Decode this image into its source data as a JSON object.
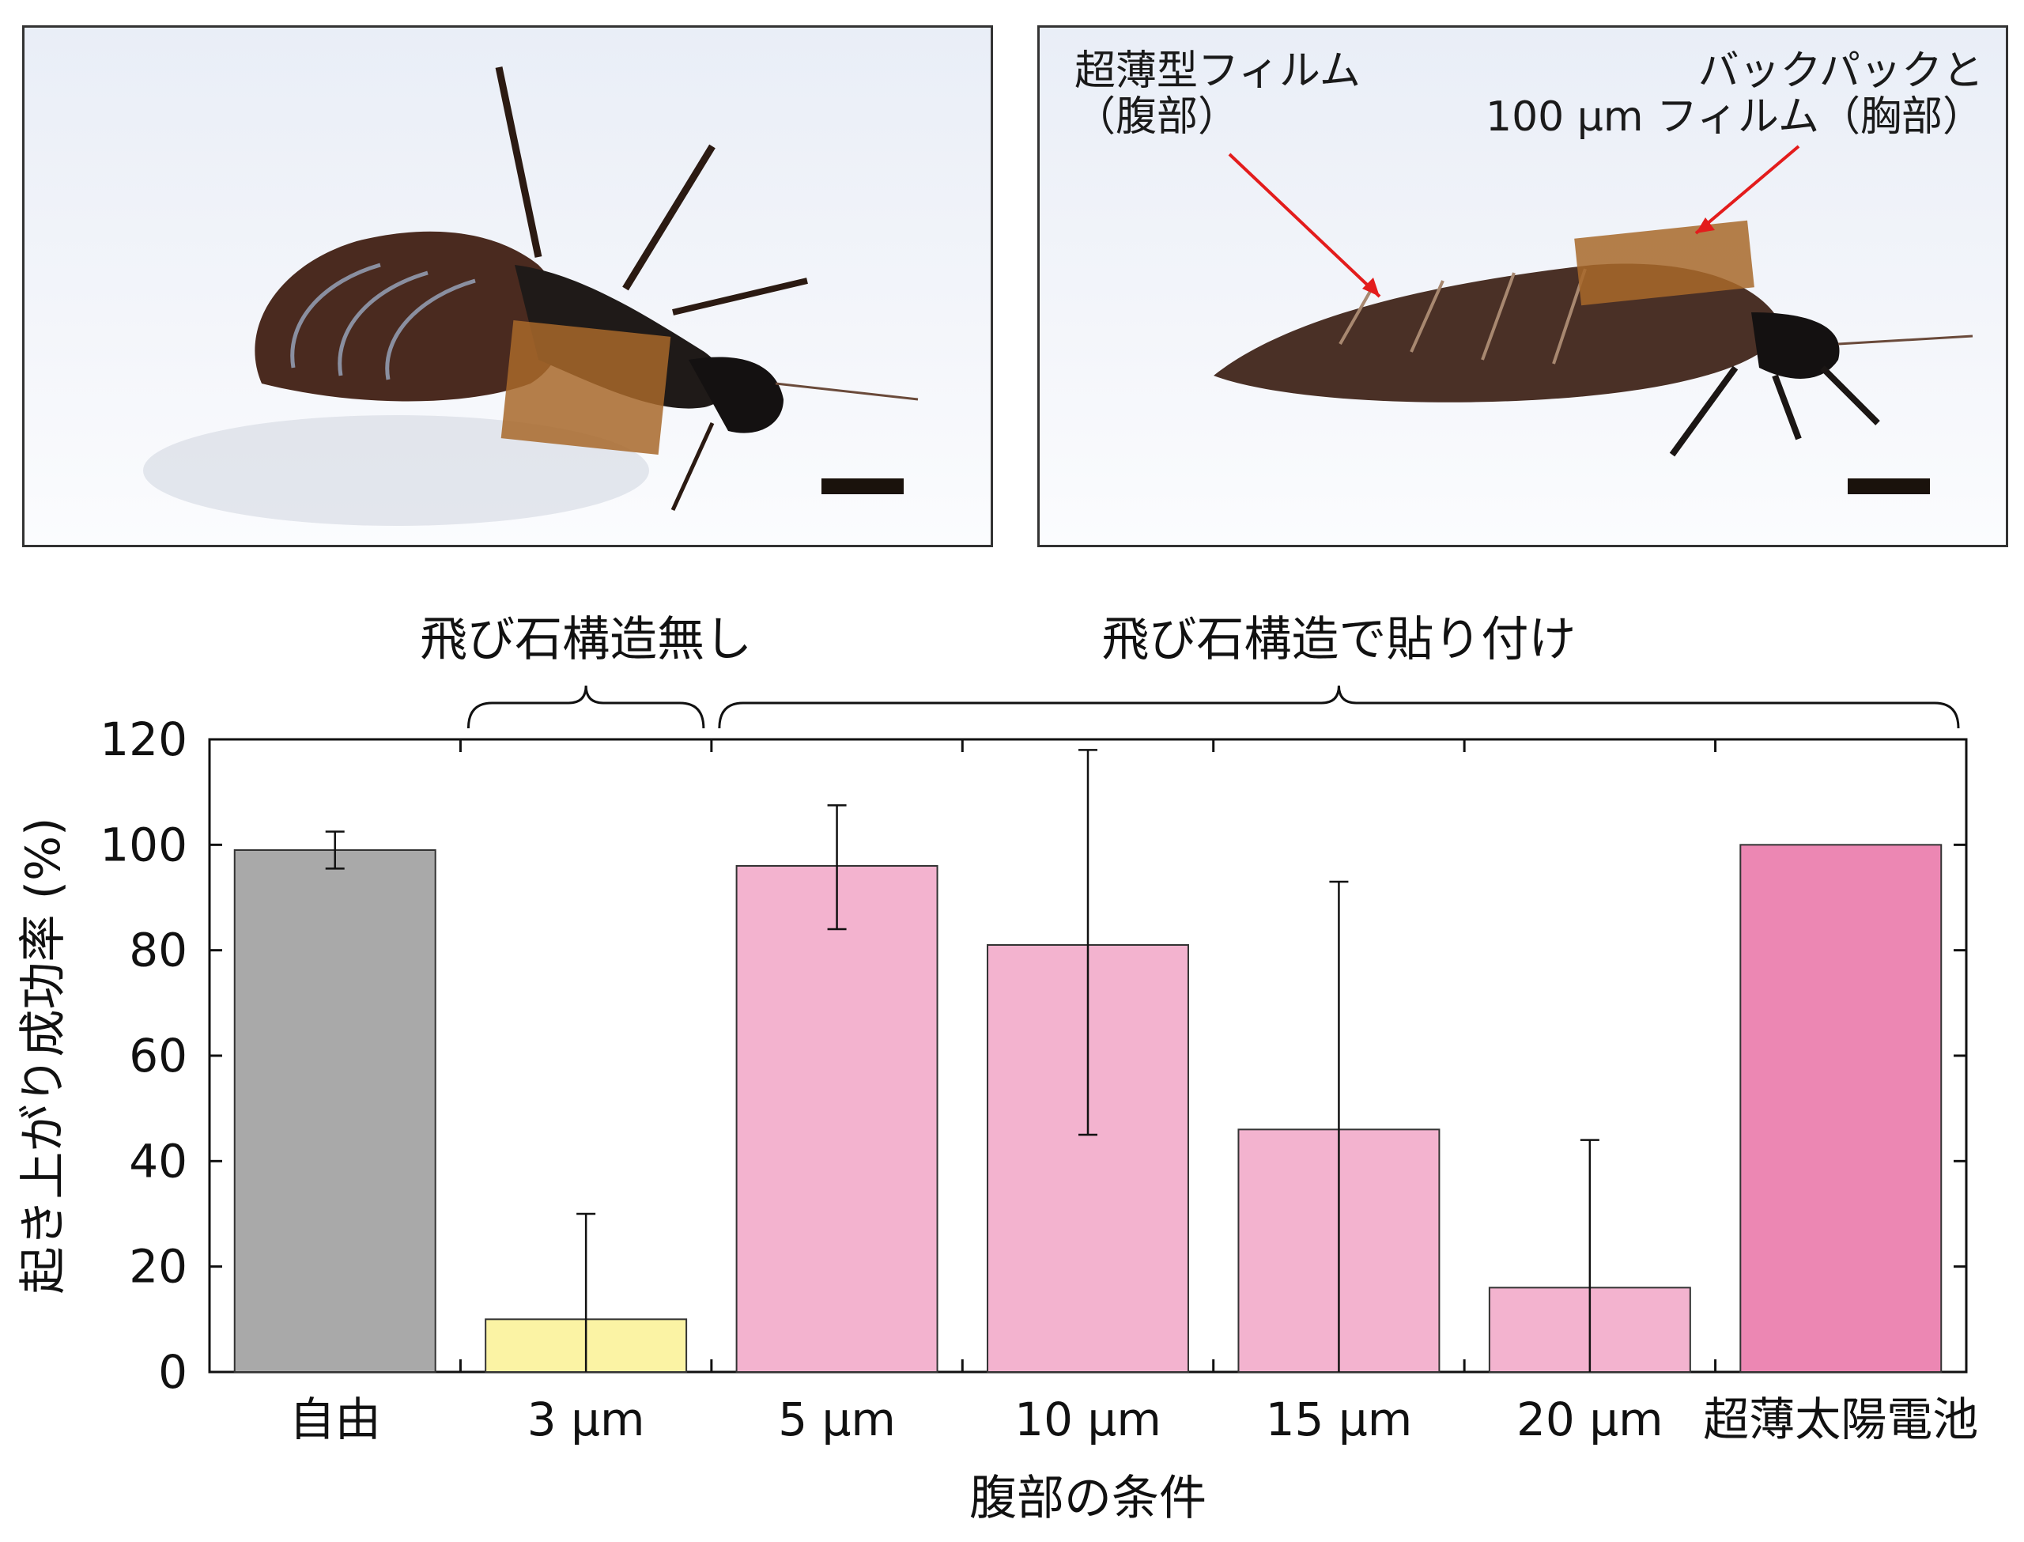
{
  "photos": {
    "left": {
      "alt": ""
    },
    "right": {
      "label_abdomen_line1": "超薄型フィルム",
      "label_abdomen_line2": "（腹部）",
      "label_thorax_line1": "バックパックと",
      "label_thorax_line2": "100 μm フィルム（胸部）"
    }
  },
  "chart_data": {
    "type": "bar",
    "title": "",
    "xlabel": "腹部の条件",
    "ylabel": "起き上がり成功率 (%)",
    "ylim": [
      0,
      120
    ],
    "yticks": [
      0,
      20,
      40,
      60,
      80,
      100,
      120
    ],
    "categories": [
      "自由",
      "3 μm",
      "5 μm",
      "10 μm",
      "15 μm",
      "20 μm",
      "超薄太陽電池"
    ],
    "values": [
      99,
      10,
      96,
      81,
      46,
      16,
      100
    ],
    "error_low": [
      95.5,
      0,
      84,
      45,
      0,
      0,
      100
    ],
    "error_high": [
      102.5,
      30,
      107.5,
      118,
      93,
      44,
      100
    ],
    "bar_colors": [
      "#a9a9a9",
      "#fbf3a4",
      "#f3b3cf",
      "#f3b3cf",
      "#f3b3cf",
      "#f3b3cf",
      "#ec87b3"
    ],
    "groups": [
      {
        "label": "飛び石構造無し",
        "from": 1,
        "to": 1
      },
      {
        "label": "飛び石構造で貼り付け",
        "from": 2,
        "to": 6
      }
    ],
    "grid": false,
    "legend": "none"
  }
}
